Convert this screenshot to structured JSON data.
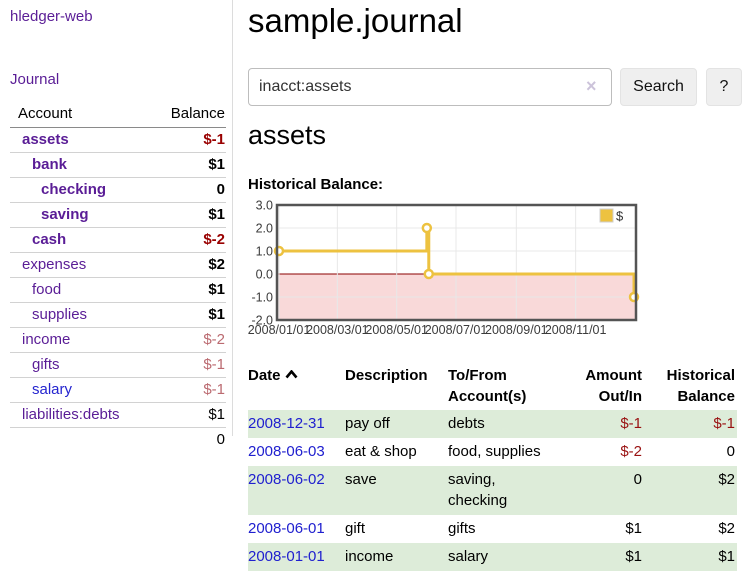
{
  "app": {
    "title": "hledger-web"
  },
  "sidebar": {
    "journal_link": "Journal",
    "accounts": {
      "header_account": "Account",
      "header_balance": "Balance",
      "rows": [
        {
          "name": "assets",
          "balance": "$-1"
        },
        {
          "name": "bank",
          "balance": "$1"
        },
        {
          "name": "checking",
          "balance": "0"
        },
        {
          "name": "saving",
          "balance": "$1"
        },
        {
          "name": "cash",
          "balance": "$-2"
        },
        {
          "name": "expenses",
          "balance": "$2"
        },
        {
          "name": "food",
          "balance": "$1"
        },
        {
          "name": "supplies",
          "balance": "$1"
        },
        {
          "name": "income",
          "balance": "$-2"
        },
        {
          "name": "gifts",
          "balance": "$-1"
        },
        {
          "name": "salary",
          "balance": "$-1"
        },
        {
          "name": "liabilities:debts",
          "balance": "$1"
        }
      ],
      "total": "0"
    }
  },
  "main": {
    "title": "sample.journal",
    "search": {
      "value": "inacct:assets",
      "clear_icon": "×",
      "search_button": "Search",
      "help_button": "?"
    },
    "account_heading": "assets",
    "chart_heading": "Historical Balance:"
  },
  "chart_data": {
    "type": "line",
    "step": true,
    "title": "Historical Balance:",
    "series": [
      {
        "name": "$",
        "color": "#edc240",
        "points": [
          [
            "2008-01-01",
            1
          ],
          [
            "2008-06-01",
            2
          ],
          [
            "2008-06-03",
            0
          ],
          [
            "2008-12-31",
            -1
          ]
        ]
      }
    ],
    "xlim": [
      "2008-01-01",
      "2008-12-31"
    ],
    "ylim": [
      -2,
      3
    ],
    "x_ticks": [
      "2008/01/01",
      "2008/03/01",
      "2008/05/01",
      "2008/07/01",
      "2008/09/01",
      "2008/11/01"
    ],
    "y_ticks": [
      "3.0",
      "2.0",
      "1.0",
      "0.0",
      "-1.0",
      "-2.0"
    ],
    "legend": {
      "label": "$",
      "position": "top-right"
    },
    "grid": true,
    "negative_region_color": "#f9d9d9",
    "zero_line_color": "#8b0000",
    "border_color": "#545454",
    "gridline_color": "#e8e8e8",
    "tick_label_color": "#3b3b3b"
  },
  "register": {
    "headers": {
      "date": "Date",
      "description": "Description",
      "account": "To/From Account(s)",
      "amount": "Amount Out/In",
      "balance": "Historical Balance"
    },
    "rows": [
      {
        "date": "2008-12-31",
        "description": "pay off",
        "account": "debts",
        "amount": "$-1",
        "balance": "$-1"
      },
      {
        "date": "2008-06-03",
        "description": "eat & shop",
        "account": "food, supplies",
        "amount": "$-2",
        "balance": "0"
      },
      {
        "date": "2008-06-02",
        "description": "save",
        "account": "saving, checking",
        "amount": "0",
        "balance": "$2"
      },
      {
        "date": "2008-06-01",
        "description": "gift",
        "account": "gifts",
        "amount": "$1",
        "balance": "$2"
      },
      {
        "date": "2008-01-01",
        "description": "income",
        "account": "salary",
        "amount": "$1",
        "balance": "$1"
      }
    ]
  },
  "icons": {
    "clear": "x-clear",
    "date_sort": "chevron-up"
  },
  "colors": {
    "link_purple": "#5a1d96",
    "link_blue": "#2020cf",
    "negative_strong": "#990000",
    "negative_soft": "#bb6a70",
    "row_green": "#ddecd9",
    "series_yellow": "#edc240"
  }
}
